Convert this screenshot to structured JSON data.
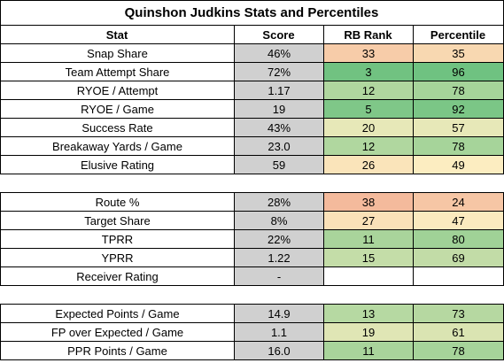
{
  "title": "Quinshon Judkins Stats and Percentiles",
  "headers": [
    "Stat",
    "Score",
    "RB Rank",
    "Percentile"
  ],
  "colors": {
    "score_bg": "#d0d0d0",
    "scale_low": "#f0a18a",
    "scale_mid": "#fcefc2",
    "scale_high": "#63be7b"
  },
  "sections": [
    {
      "rows": [
        {
          "stat": "Snap Share",
          "score": "46%",
          "rank": "33",
          "pct": "35"
        },
        {
          "stat": "Team Attempt Share",
          "score": "72%",
          "rank": "3",
          "pct": "96"
        },
        {
          "stat": "RYOE / Attempt",
          "score": "1.17",
          "rank": "12",
          "pct": "78"
        },
        {
          "stat": "RYOE / Game",
          "score": "19",
          "rank": "5",
          "pct": "92"
        },
        {
          "stat": "Success Rate",
          "score": "43%",
          "rank": "20",
          "pct": "57"
        },
        {
          "stat": "Breakaway Yards / Game",
          "score": "23.0",
          "rank": "12",
          "pct": "78"
        },
        {
          "stat": "Elusive Rating",
          "score": "59",
          "rank": "26",
          "pct": "49"
        }
      ]
    },
    {
      "rows": [
        {
          "stat": "Route %",
          "score": "28%",
          "rank": "38",
          "pct": "24"
        },
        {
          "stat": "Target Share",
          "score": "8%",
          "rank": "27",
          "pct": "47"
        },
        {
          "stat": "TPRR",
          "score": "22%",
          "rank": "11",
          "pct": "80"
        },
        {
          "stat": "YPRR",
          "score": "1.22",
          "rank": "15",
          "pct": "69"
        },
        {
          "stat": "Receiver Rating",
          "score": "-",
          "rank": "",
          "pct": ""
        }
      ]
    },
    {
      "rows": [
        {
          "stat": "Expected Points / Game",
          "score": "14.9",
          "rank": "13",
          "pct": "73"
        },
        {
          "stat": "FP over Expected / Game",
          "score": "1.1",
          "rank": "19",
          "pct": "61"
        },
        {
          "stat": "PPR Points / Game",
          "score": "16.0",
          "rank": "11",
          "pct": "78"
        }
      ]
    }
  ]
}
